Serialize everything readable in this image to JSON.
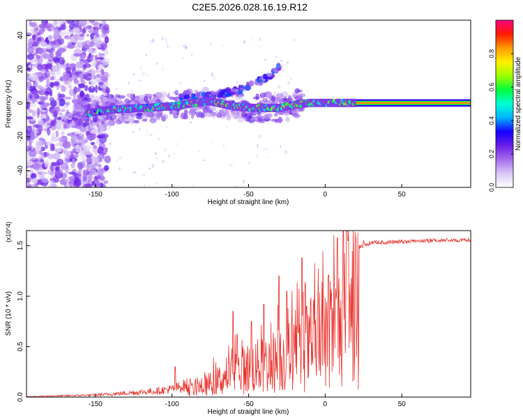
{
  "title": "C2E5.2026.028.16.19.R12",
  "chart_data": [
    {
      "type": "heatmap",
      "xlabel": "Height of straight line (km)",
      "ylabel": "Frequency (Hz)",
      "xlim": [
        -195,
        95
      ],
      "ylim": [
        -50,
        49
      ],
      "xticks": [
        -150,
        -100,
        -50,
        0,
        50
      ],
      "yticks": [
        -40,
        -20,
        0,
        20,
        40
      ],
      "colorbar": {
        "label": "Normalized spectral amplitude",
        "range": [
          0.0,
          1.0
        ],
        "ticks": [
          0.0,
          0.2,
          0.4,
          0.6,
          0.8
        ],
        "colormap": [
          "#ffffff",
          "#d9c8f5",
          "#a56cf0",
          "#6a1de8",
          "#1400ff",
          "#00b4ff",
          "#00ffd5",
          "#00ff3c",
          "#9cff00",
          "#fff000",
          "#ff9b00",
          "#ff1a00",
          "#ff0080"
        ]
      },
      "ridge": {
        "x": [
          -155,
          -140,
          -120,
          -100,
          -85,
          -75,
          -60,
          -45,
          -30,
          -20,
          -10,
          0,
          10,
          20,
          95
        ],
        "y": [
          -6,
          -4,
          -3,
          -2,
          0,
          1,
          -2,
          -3,
          -3,
          -1,
          0,
          0,
          0,
          0,
          0
        ],
        "peak_amplitude": 0.85
      },
      "upper_branch": {
        "x": [
          -95,
          -85,
          -75,
          -65,
          -55,
          -45,
          -35,
          -30
        ],
        "y": [
          3,
          4,
          5,
          6,
          8,
          12,
          17,
          22
        ]
      },
      "noise_region": {
        "x_from": -195,
        "x_to": -150
      }
    },
    {
      "type": "line",
      "xlabel": "Height of straight line (km)",
      "ylabel": "SNR (10 * v/v)",
      "y_multiplier": "(x10^4)",
      "xlim": [
        -195,
        95
      ],
      "ylim": [
        0,
        1.65
      ],
      "xticks": [
        -150,
        -100,
        -50,
        0,
        50
      ],
      "yticks": [
        0.0,
        0.5,
        1.0,
        1.5
      ],
      "series": [
        {
          "color": "#e8302a",
          "envelope_x": [
            -195,
            -150,
            -130,
            -110,
            -100,
            -90,
            -80,
            -70,
            -60,
            -50,
            -40,
            -30,
            -20,
            -10,
            0,
            5,
            10,
            15,
            20,
            25,
            30,
            50,
            70,
            95
          ],
          "envelope_y": [
            0.005,
            0.02,
            0.04,
            0.06,
            0.08,
            0.12,
            0.18,
            0.28,
            0.4,
            0.5,
            0.55,
            0.65,
            0.72,
            0.8,
            0.95,
            1.1,
            1.25,
            1.4,
            1.5,
            1.52,
            1.55,
            1.56,
            1.57,
            1.58
          ],
          "peaks_x": [
            -98,
            -60,
            -48,
            -40,
            -30,
            -25,
            -15,
            -12,
            2,
            8,
            15,
            20,
            25
          ],
          "peaks_y": [
            0.3,
            0.85,
            0.75,
            0.92,
            1.2,
            1.05,
            1.38,
            0.9,
            1.2,
            1.58,
            1.55,
            1.58,
            1.55
          ]
        }
      ]
    }
  ]
}
